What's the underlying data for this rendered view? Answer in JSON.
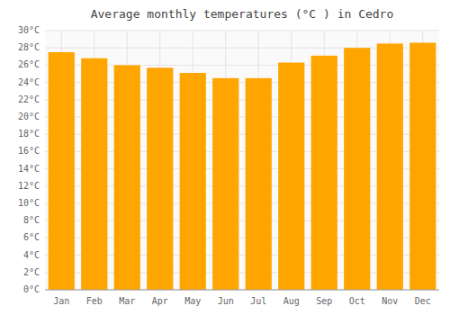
{
  "chart_data": {
    "type": "bar",
    "title": "Average monthly temperatures (°C ) in Cedro",
    "categories": [
      "Jan",
      "Feb",
      "Mar",
      "Apr",
      "May",
      "Jun",
      "Jul",
      "Aug",
      "Sep",
      "Oct",
      "Nov",
      "Dec"
    ],
    "values": [
      27.5,
      26.8,
      26.0,
      25.7,
      25.1,
      24.5,
      24.5,
      26.3,
      27.1,
      28.0,
      28.5,
      28.6
    ],
    "color": "#FFA500",
    "ylim": [
      0,
      30
    ],
    "yticks": [
      {
        "value": 0,
        "label": "0°C"
      },
      {
        "value": 2,
        "label": "2°C"
      },
      {
        "value": 4,
        "label": "4°C"
      },
      {
        "value": 6,
        "label": "6°C"
      },
      {
        "value": 8,
        "label": "8°C"
      },
      {
        "value": 10,
        "label": "10°C"
      },
      {
        "value": 12,
        "label": "12°C"
      },
      {
        "value": 14,
        "label": "14°C"
      },
      {
        "value": 16,
        "label": "16°C"
      },
      {
        "value": 18,
        "label": "18°C"
      },
      {
        "value": 20,
        "label": "20°C"
      },
      {
        "value": 22,
        "label": "22°C"
      },
      {
        "value": 24,
        "label": "24°C"
      },
      {
        "value": 26,
        "label": "26°C"
      },
      {
        "value": 28,
        "label": "28°C"
      },
      {
        "value": 30,
        "label": "30°C"
      }
    ],
    "grid": true
  }
}
